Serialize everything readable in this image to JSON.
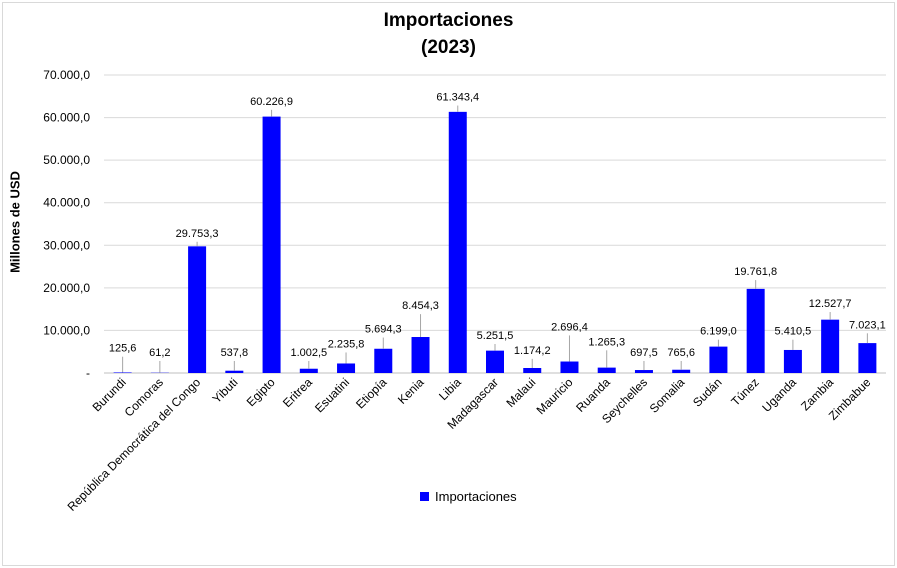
{
  "chart_data": {
    "type": "bar",
    "title": "Importaciones",
    "subtitle": "(2023)",
    "ylabel": "Millones de USD",
    "xlabel": "",
    "ylim": [
      0,
      70000
    ],
    "yticks": [
      0,
      10000,
      20000,
      30000,
      40000,
      50000,
      60000,
      70000
    ],
    "ytick_labels": [
      "-",
      "10.000,0",
      "20.000,0",
      "30.000,0",
      "40.000,0",
      "50.000,0",
      "60.000,0",
      "70.000,0"
    ],
    "grid": true,
    "legend_position": "bottom",
    "categories": [
      "Burundi",
      "Comoras",
      "República Democrática del Congo",
      "Yibuti",
      "Egipto",
      "Eritrea",
      "Esuatini",
      "Etiopía",
      "Kenia",
      "Libia",
      "Madagascar",
      "Malaui",
      "Mauricio",
      "Ruanda",
      "Seychelles",
      "Somalia",
      "Sudán",
      "Túnez",
      "Uganda",
      "Zambia",
      "Zimbabue"
    ],
    "series": [
      {
        "name": "Importaciones",
        "color": "#0000ff",
        "values": [
          125.6,
          61.2,
          29753.3,
          537.8,
          60226.9,
          1002.5,
          2235.8,
          5694.3,
          8454.3,
          61343.4,
          5251.5,
          1174.2,
          2696.4,
          1265.3,
          697.5,
          765.6,
          6199.0,
          19761.8,
          5410.5,
          12527.7,
          7023.1
        ],
        "labels": [
          "125,6",
          "61,2",
          "29.753,3",
          "537,8",
          "60.226,9",
          "1.002,5",
          "2.235,8",
          "5.694,3",
          "8.454,3",
          "61.343,4",
          "5.251,5",
          "1.174,2",
          "2.696,4",
          "1.265,3",
          "697,5",
          "765,6",
          "6.199,0",
          "19.761,8",
          "5.410,5",
          "12.527,7",
          "7.023,1"
        ],
        "label_values": [
          5000,
          4000,
          32000,
          4000,
          63000,
          4000,
          6000,
          9500,
          15000,
          64000,
          8000,
          4500,
          10000,
          6500,
          4000,
          4000,
          9000,
          23000,
          9000,
          15500,
          10500
        ]
      }
    ]
  }
}
